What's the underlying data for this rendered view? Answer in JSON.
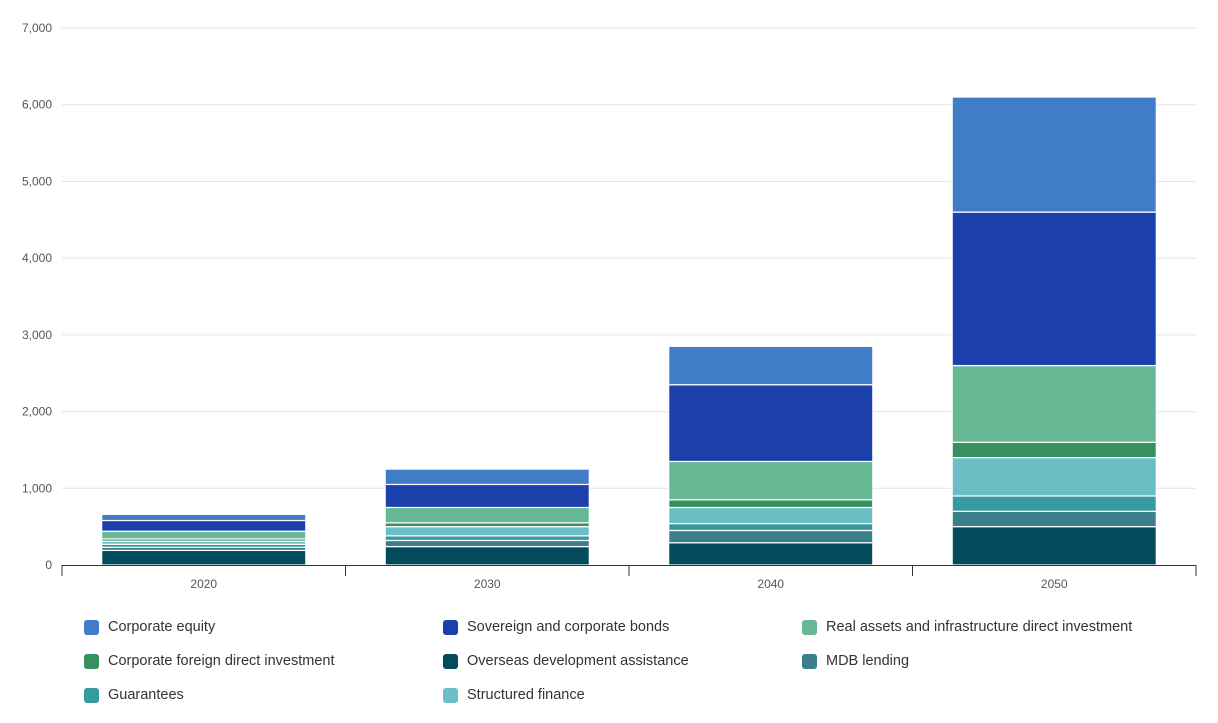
{
  "chart_data": {
    "type": "bar",
    "stacked": true,
    "categories": [
      "2020",
      "2030",
      "2040",
      "2050"
    ],
    "ylim": [
      0,
      7000
    ],
    "yticks": [
      0,
      1000,
      2000,
      3000,
      4000,
      5000,
      6000,
      7000
    ],
    "ytick_labels": [
      "0",
      "1,000",
      "2,000",
      "3,000",
      "4,000",
      "5,000",
      "6,000",
      "7,000"
    ],
    "grid": true,
    "legend_position": "bottom",
    "title": "",
    "xlabel": "",
    "ylabel": "",
    "stack_order": [
      "Overseas development assistance",
      "MDB lending",
      "Guarantees",
      "Structured finance",
      "Corporate foreign direct investment",
      "Real assets and infrastructure direct investment",
      "Sovereign and corporate bonds",
      "Corporate equity"
    ],
    "series": [
      {
        "name": "Corporate equity",
        "color": "#417cc8",
        "values": [
          80,
          200,
          500,
          1500
        ]
      },
      {
        "name": "Sovereign and corporate bonds",
        "color": "#1b40ab",
        "values": [
          140,
          300,
          1000,
          2000
        ]
      },
      {
        "name": "Real assets and infrastructure direct investment",
        "color": "#67b894",
        "values": [
          100,
          200,
          500,
          1000
        ]
      },
      {
        "name": "Corporate foreign direct investment",
        "color": "#35925f",
        "values": [
          30,
          50,
          100,
          200
        ]
      },
      {
        "name": "Overseas development assistance",
        "color": "#024a5c",
        "values": [
          190,
          240,
          290,
          500
        ]
      },
      {
        "name": "MDB lending",
        "color": "#3b7f8c",
        "values": [
          40,
          80,
          160,
          200
        ]
      },
      {
        "name": "Guarantees",
        "color": "#389aa1",
        "values": [
          40,
          60,
          90,
          200
        ]
      },
      {
        "name": "Structured finance",
        "color": "#6bbfc4",
        "values": [
          40,
          120,
          210,
          500
        ]
      }
    ]
  }
}
